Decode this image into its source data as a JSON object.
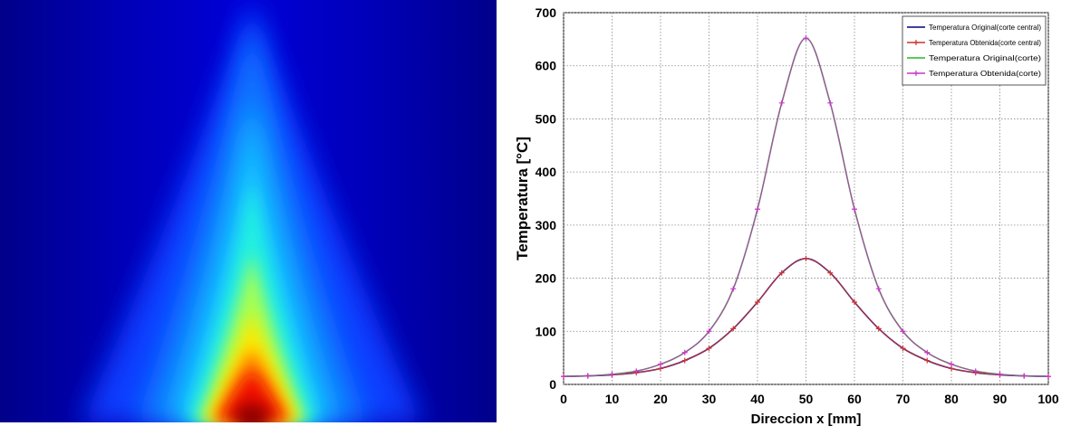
{
  "chart_data": [
    {
      "type": "heatmap",
      "colormap": "jet",
      "colors": [
        "#00008f",
        "#0000ff",
        "#00ffff",
        "#ffff00",
        "#ff0000",
        "#800000"
      ]
    },
    {
      "type": "line",
      "title": "",
      "xlabel": "Direccion x [mm]",
      "ylabel": "Temperatura [°C]",
      "xlim": [
        0,
        100
      ],
      "ylim": [
        0,
        700
      ],
      "xticks": [
        "0",
        "10",
        "20",
        "30",
        "40",
        "50",
        "60",
        "70",
        "80",
        "90",
        "100"
      ],
      "yticks": [
        "0",
        "100",
        "200",
        "300",
        "400",
        "500",
        "600",
        "700"
      ],
      "grid": true,
      "legend_position": "top-right",
      "x": [
        0,
        5,
        10,
        15,
        20,
        25,
        30,
        35,
        40,
        45,
        50,
        55,
        60,
        65,
        70,
        75,
        80,
        85,
        90,
        95,
        100
      ],
      "series": [
        {
          "name": "Temperatura Original(corte central)",
          "color": "#000080",
          "marker": "none",
          "values": [
            15,
            16,
            18,
            22,
            30,
            45,
            68,
            105,
            155,
            210,
            237,
            210,
            155,
            105,
            68,
            45,
            30,
            22,
            18,
            16,
            15
          ]
        },
        {
          "name": "Temperatura Obtenida(corte central)",
          "color": "#cc3333",
          "marker": "plus",
          "values": [
            15,
            16,
            18,
            22,
            30,
            45,
            68,
            105,
            155,
            210,
            237,
            210,
            155,
            105,
            68,
            45,
            30,
            22,
            18,
            16,
            15
          ]
        },
        {
          "name": "Temperatura Original(corte)",
          "color": "#22bb22",
          "marker": "none",
          "values": [
            15,
            16,
            19,
            25,
            38,
            60,
            100,
            180,
            330,
            530,
            652,
            530,
            330,
            180,
            100,
            60,
            38,
            25,
            19,
            16,
            15
          ]
        },
        {
          "name": "Temperatura Obtenida(corte)",
          "color": "#cc33cc",
          "marker": "plus",
          "values": [
            15,
            16,
            19,
            25,
            38,
            60,
            100,
            180,
            330,
            530,
            652,
            530,
            330,
            180,
            100,
            60,
            38,
            25,
            19,
            16,
            15
          ]
        }
      ]
    }
  ]
}
